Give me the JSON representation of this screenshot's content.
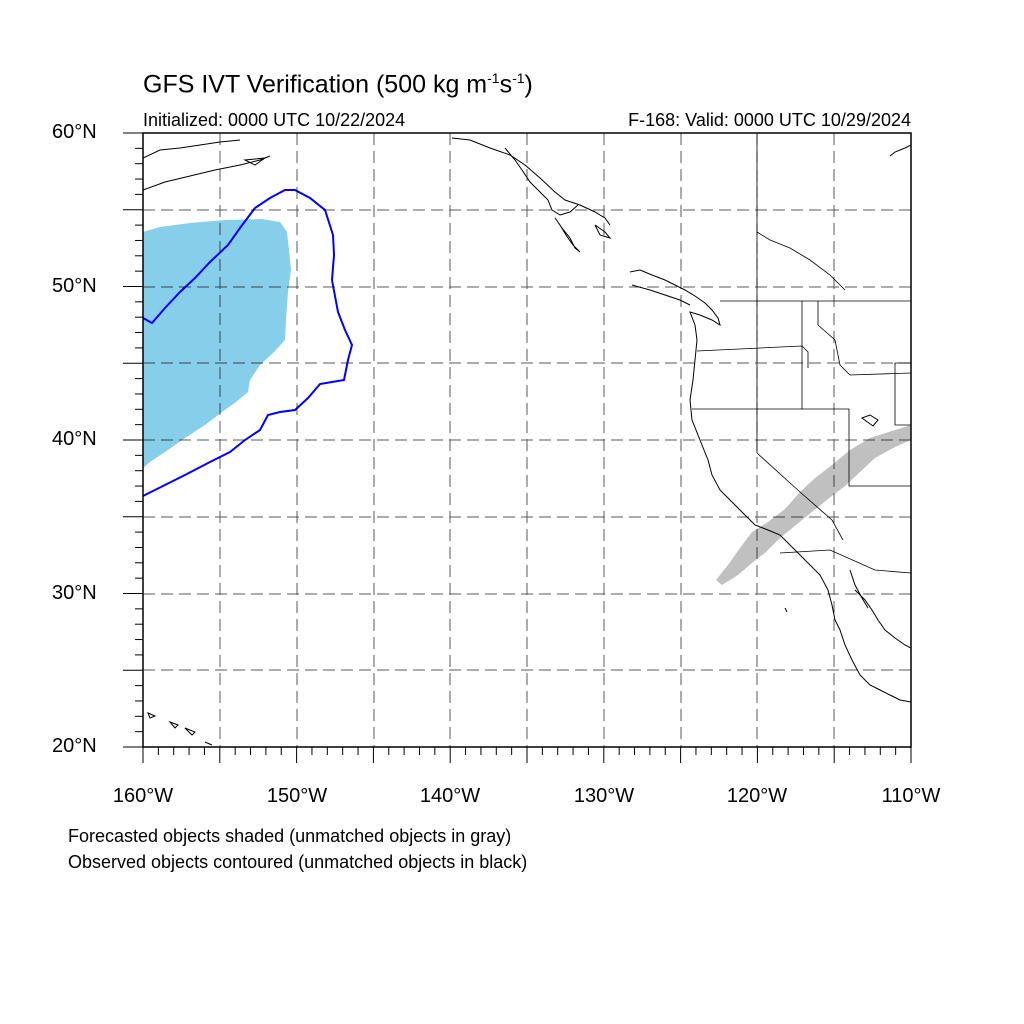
{
  "title": {
    "main": "GFS IVT Verification (500 kg m",
    "sup1": "-1",
    "mid": "s",
    "sup2": "-1",
    "end": ")"
  },
  "initialized": "Initialized: 0000 UTC 10/22/2024",
  "valid": "F-168: Valid: 0000 UTC 10/29/2024",
  "map": {
    "lon_range": [
      -160,
      -110
    ],
    "lat_range": [
      20,
      60
    ],
    "lat_labels": [
      "60°N",
      "50°N",
      "40°N",
      "30°N",
      "20°N"
    ],
    "lon_labels": [
      "160°W",
      "150°W",
      "140°W",
      "130°W",
      "120°W",
      "110°W"
    ],
    "grid_style": "dashed",
    "colors": {
      "matched_forecast_fill": "#87ceeb",
      "unmatched_forecast_fill": "#c0c0c0",
      "matched_observed_contour": "#0000ff",
      "coastline": "#000000"
    }
  },
  "footnotes": {
    "line1": "Forecasted objects shaded (unmatched objects in gray)",
    "line2": "Observed objects contoured (unmatched objects in black)"
  }
}
